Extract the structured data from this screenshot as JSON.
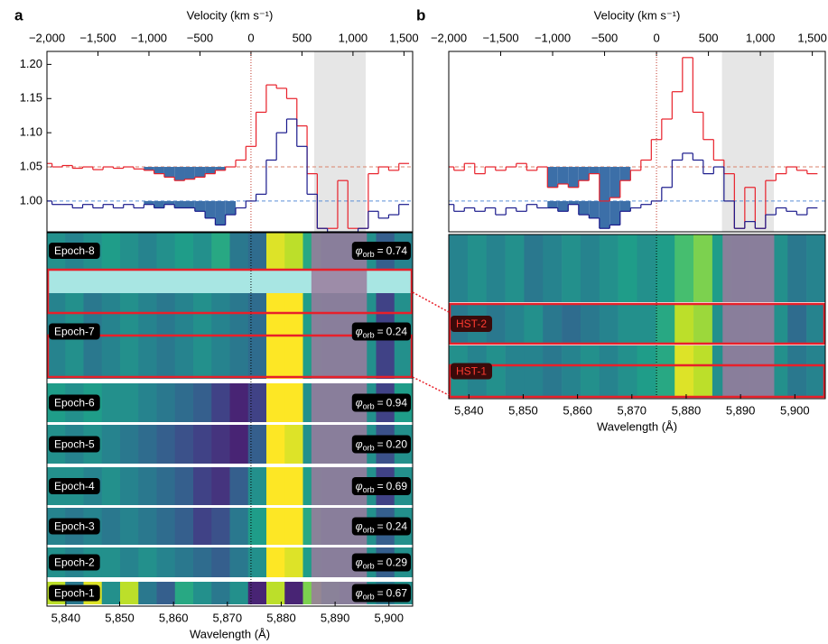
{
  "chart_data": [
    {
      "type": "step",
      "panel": "a",
      "xlabel": "Velocity (km s⁻¹)",
      "xlim": [
        -2000,
        1585
      ],
      "xticks": [
        {
          "value": -2000,
          "label": "−2,000"
        },
        {
          "value": -1500,
          "label": "−1,500"
        },
        {
          "value": -1000,
          "label": "−1,000"
        },
        {
          "value": -500,
          "label": "−500"
        },
        0,
        500,
        {
          "value": 1000,
          "label": "1,000"
        },
        {
          "value": 1500,
          "label": "1,500"
        }
      ],
      "ylim": [
        0.955,
        1.219
      ],
      "yticks": [
        {
          "value": 1,
          "label": "1.00"
        },
        {
          "value": 1.05,
          "label": "1.05"
        },
        {
          "value": 1.1,
          "label": "1.10"
        },
        {
          "value": 1.15,
          "label": "1.15"
        },
        {
          "value": 1.2,
          "label": "1.20"
        }
      ],
      "shaded_xlim": [
        620,
        1125
      ],
      "fill_xlim": [
        -1000,
        -200
      ],
      "x": [
        -2000,
        -1900,
        -1800,
        -1700,
        -1600,
        -1500,
        -1400,
        -1300,
        -1200,
        -1100,
        -1000,
        -900,
        -800,
        -700,
        -600,
        -500,
        -400,
        -300,
        -200,
        -100,
        0,
        100,
        200,
        300,
        400,
        500,
        600,
        700,
        800,
        900,
        1000,
        1100,
        1200,
        1300,
        1400,
        1500
      ],
      "series": [
        {
          "color": "#e8202a",
          "baseline": 1.05,
          "values": [
            1.055,
            1.05,
            1.052,
            1.048,
            1.05,
            1.046,
            1.05,
            1.048,
            1.05,
            1.047,
            1.045,
            1.04,
            1.035,
            1.03,
            1.032,
            1.035,
            1.04,
            1.045,
            1.05,
            1.06,
            1.08,
            1.13,
            1.17,
            1.165,
            1.15,
            1.11,
            1.04,
            0.96,
            0.96,
            1.03,
            0.96,
            0.96,
            1.04,
            1.05,
            1.045,
            1.055
          ]
        },
        {
          "color": "#1a1a8c",
          "baseline": 1.0,
          "values": [
            1.0,
            0.995,
            0.995,
            0.99,
            0.995,
            0.99,
            0.995,
            0.99,
            0.995,
            0.99,
            0.995,
            0.99,
            0.995,
            0.99,
            0.99,
            0.985,
            0.975,
            0.965,
            0.98,
            0.99,
            1.0,
            1.01,
            1.06,
            1.1,
            1.12,
            1.08,
            1.01,
            0.96,
            0.955,
            0.955,
            0.955,
            0.96,
            0.985,
            0.975,
            0.98,
            0.995
          ]
        }
      ]
    },
    {
      "type": "heatmap",
      "xlabel": "Wavelength (Å)",
      "xlim": [
        5836.5,
        5904.4
      ],
      "xticks": [
        {
          "value": 5840,
          "label": "5,840"
        },
        {
          "value": 5850,
          "label": "5,850"
        },
        {
          "value": 5860,
          "label": "5,860"
        },
        {
          "value": 5870,
          "label": "5,870"
        },
        {
          "value": 5880,
          "label": "5,880"
        },
        {
          "value": 5890,
          "label": "5,890"
        },
        {
          "value": 5900,
          "label": "5,900"
        }
      ],
      "shaded_xlim": [
        5885.6,
        5895.9
      ],
      "phase_symbol": "φ",
      "phase_subscript": "orb",
      "phase_separator": "=",
      "rows": [
        {
          "label": "Epoch-8",
          "phase": 0.74,
          "phase_label": "0.74",
          "values": [
            0.5,
            0.45,
            0.5,
            0.55,
            0.5,
            0.45,
            0.5,
            0.55,
            0.5,
            0.6,
            0.4,
            0.35,
            0.95,
            0.9,
            0.6,
            0.5,
            0.5,
            0.5,
            0.3,
            0.45
          ]
        },
        {
          "label": "Epoch-7",
          "phase": 0.24,
          "phase_label": "0.24",
          "values": [
            0.45,
            0.5,
            0.4,
            0.45,
            0.5,
            0.45,
            0.4,
            0.45,
            0.5,
            0.45,
            0.4,
            0.35,
            1,
            1,
            0.55,
            0.5,
            0.5,
            0.5,
            0.2,
            0.5
          ]
        },
        {
          "label": "Epoch-6",
          "phase": 0.94,
          "phase_label": "0.94",
          "values": [
            0.55,
            0.5,
            0.55,
            0.5,
            0.5,
            0.45,
            0.4,
            0.35,
            0.3,
            0.2,
            0.1,
            0.2,
            1,
            1,
            0.5,
            0.5,
            0.5,
            0.5,
            0.2,
            0.55
          ]
        },
        {
          "label": "Epoch-5",
          "phase": 0.2,
          "phase_label": "0.20",
          "values": [
            0.5,
            0.45,
            0.5,
            0.45,
            0.4,
            0.35,
            0.3,
            0.25,
            0.2,
            0.15,
            0.1,
            0.3,
            1,
            0.95,
            0.5,
            0.5,
            0.5,
            0.5,
            0.25,
            0.5
          ]
        },
        {
          "label": "Epoch-4",
          "phase": 0.69,
          "phase_label": "0.69",
          "values": [
            0.5,
            0.5,
            0.45,
            0.5,
            0.45,
            0.4,
            0.35,
            0.3,
            0.2,
            0.15,
            0.3,
            0.5,
            1,
            1,
            0.55,
            0.5,
            0.5,
            0.5,
            0.2,
            0.5
          ]
        },
        {
          "label": "Epoch-3",
          "phase": 0.24,
          "phase_label": "0.24",
          "values": [
            0.45,
            0.4,
            0.45,
            0.4,
            0.45,
            0.4,
            0.35,
            0.3,
            0.2,
            0.25,
            0.4,
            0.55,
            1,
            1,
            0.6,
            0.5,
            0.5,
            0.5,
            0.3,
            0.5
          ]
        },
        {
          "label": "Epoch-2",
          "phase": 0.29,
          "phase_label": "0.29",
          "values": [
            0.5,
            0.45,
            0.5,
            0.5,
            0.45,
            0.5,
            0.45,
            0.4,
            0.35,
            0.3,
            0.4,
            0.5,
            1,
            0.95,
            0.55,
            0.5,
            0.5,
            0.5,
            0.3,
            0.5
          ]
        },
        {
          "label": "Epoch-1",
          "phase": 0.67,
          "phase_label": "0.67",
          "values": [
            0.9,
            0.4,
            0.95,
            0.5,
            0.9,
            0.4,
            0.3,
            0.6,
            0.5,
            0.4,
            0.5,
            0.1,
            0.9,
            0.1,
            0.8,
            0.6,
            0.5,
            0.5,
            0.4,
            0.5
          ]
        }
      ]
    },
    {
      "type": "step",
      "panel": "b",
      "xlabel": "Velocity (km s⁻¹)",
      "xlim": [
        -2000,
        1625
      ],
      "xticks": [
        {
          "value": -2000,
          "label": "−2,000"
        },
        {
          "value": -1500,
          "label": "−1,500"
        },
        {
          "value": -1000,
          "label": "−1,000"
        },
        {
          "value": -500,
          "label": "−500"
        },
        0,
        500,
        {
          "value": 1000,
          "label": "1,000"
        },
        {
          "value": 1500,
          "label": "1,500"
        }
      ],
      "ylim": [
        0.955,
        1.219
      ],
      "shaded_xlim": [
        630,
        1130
      ],
      "fill_xlim": [
        -1000,
        -250
      ],
      "x": [
        -2000,
        -1900,
        -1800,
        -1700,
        -1600,
        -1500,
        -1400,
        -1300,
        -1200,
        -1100,
        -1000,
        -900,
        -800,
        -700,
        -600,
        -500,
        -400,
        -300,
        -200,
        -100,
        0,
        100,
        200,
        300,
        400,
        500,
        600,
        700,
        800,
        900,
        1000,
        1100,
        1200,
        1300,
        1400,
        1500
      ],
      "series": [
        {
          "color": "#e8202a",
          "baseline": 1.05,
          "values": [
            1.05,
            1.045,
            1.055,
            1.04,
            1.05,
            1.045,
            1.05,
            1.055,
            1.045,
            1.05,
            1.02,
            1.025,
            1.02,
            1.03,
            1.04,
            1.0,
            1.005,
            1.03,
            1.045,
            1.06,
            1.09,
            1.12,
            1.16,
            1.21,
            1.13,
            1.09,
            1.06,
            1.04,
            0.96,
            1.02,
            0.96,
            1.03,
            1.04,
            1.05,
            1.045,
            1.04
          ]
        },
        {
          "color": "#1a1a8c",
          "baseline": 1.0,
          "values": [
            0.995,
            0.985,
            0.99,
            0.985,
            0.99,
            0.98,
            0.99,
            0.985,
            0.995,
            0.99,
            0.99,
            0.985,
            0.995,
            0.98,
            0.975,
            0.96,
            0.965,
            0.985,
            0.99,
            0.995,
            1.0,
            1.02,
            1.06,
            1.07,
            1.06,
            1.04,
            1.05,
            1.0,
            0.96,
            0.97,
            0.96,
            0.98,
            0.99,
            0.985,
            0.98,
            0.99
          ]
        }
      ]
    },
    {
      "type": "heatmap",
      "xlabel": "Wavelength (Å)",
      "xlim": [
        5836.3,
        5905.6
      ],
      "xticks": [
        {
          "value": 5840,
          "label": "5,840"
        },
        {
          "value": 5850,
          "label": "5,850"
        },
        {
          "value": 5860,
          "label": "5,860"
        },
        {
          "value": 5870,
          "label": "5,870"
        },
        {
          "value": 5880,
          "label": "5,880"
        },
        {
          "value": 5890,
          "label": "5,890"
        },
        {
          "value": 5900,
          "label": "5,900"
        }
      ],
      "shaded_xlim": [
        5886.7,
        5896.2
      ],
      "rows": [
        {
          "label": null,
          "values": [
            0.45,
            0.5,
            0.45,
            0.5,
            0.4,
            0.45,
            0.5,
            0.45,
            0.5,
            0.55,
            0.5,
            0.55,
            0.7,
            0.8,
            0.55,
            0.5,
            0.5,
            0.5,
            0.4,
            0.45
          ]
        },
        {
          "label": "HST-2",
          "values": [
            0.4,
            0.45,
            0.4,
            0.45,
            0.5,
            0.4,
            0.35,
            0.4,
            0.45,
            0.5,
            0.5,
            0.6,
            0.9,
            0.85,
            0.5,
            0.5,
            0.5,
            0.5,
            0.35,
            0.45
          ]
        },
        {
          "label": "HST-1",
          "values": [
            0.5,
            0.45,
            0.5,
            0.45,
            0.45,
            0.4,
            0.45,
            0.5,
            0.45,
            0.5,
            0.55,
            0.6,
            0.95,
            0.9,
            0.5,
            0.5,
            0.5,
            0.5,
            0.4,
            0.45
          ]
        }
      ]
    }
  ]
}
